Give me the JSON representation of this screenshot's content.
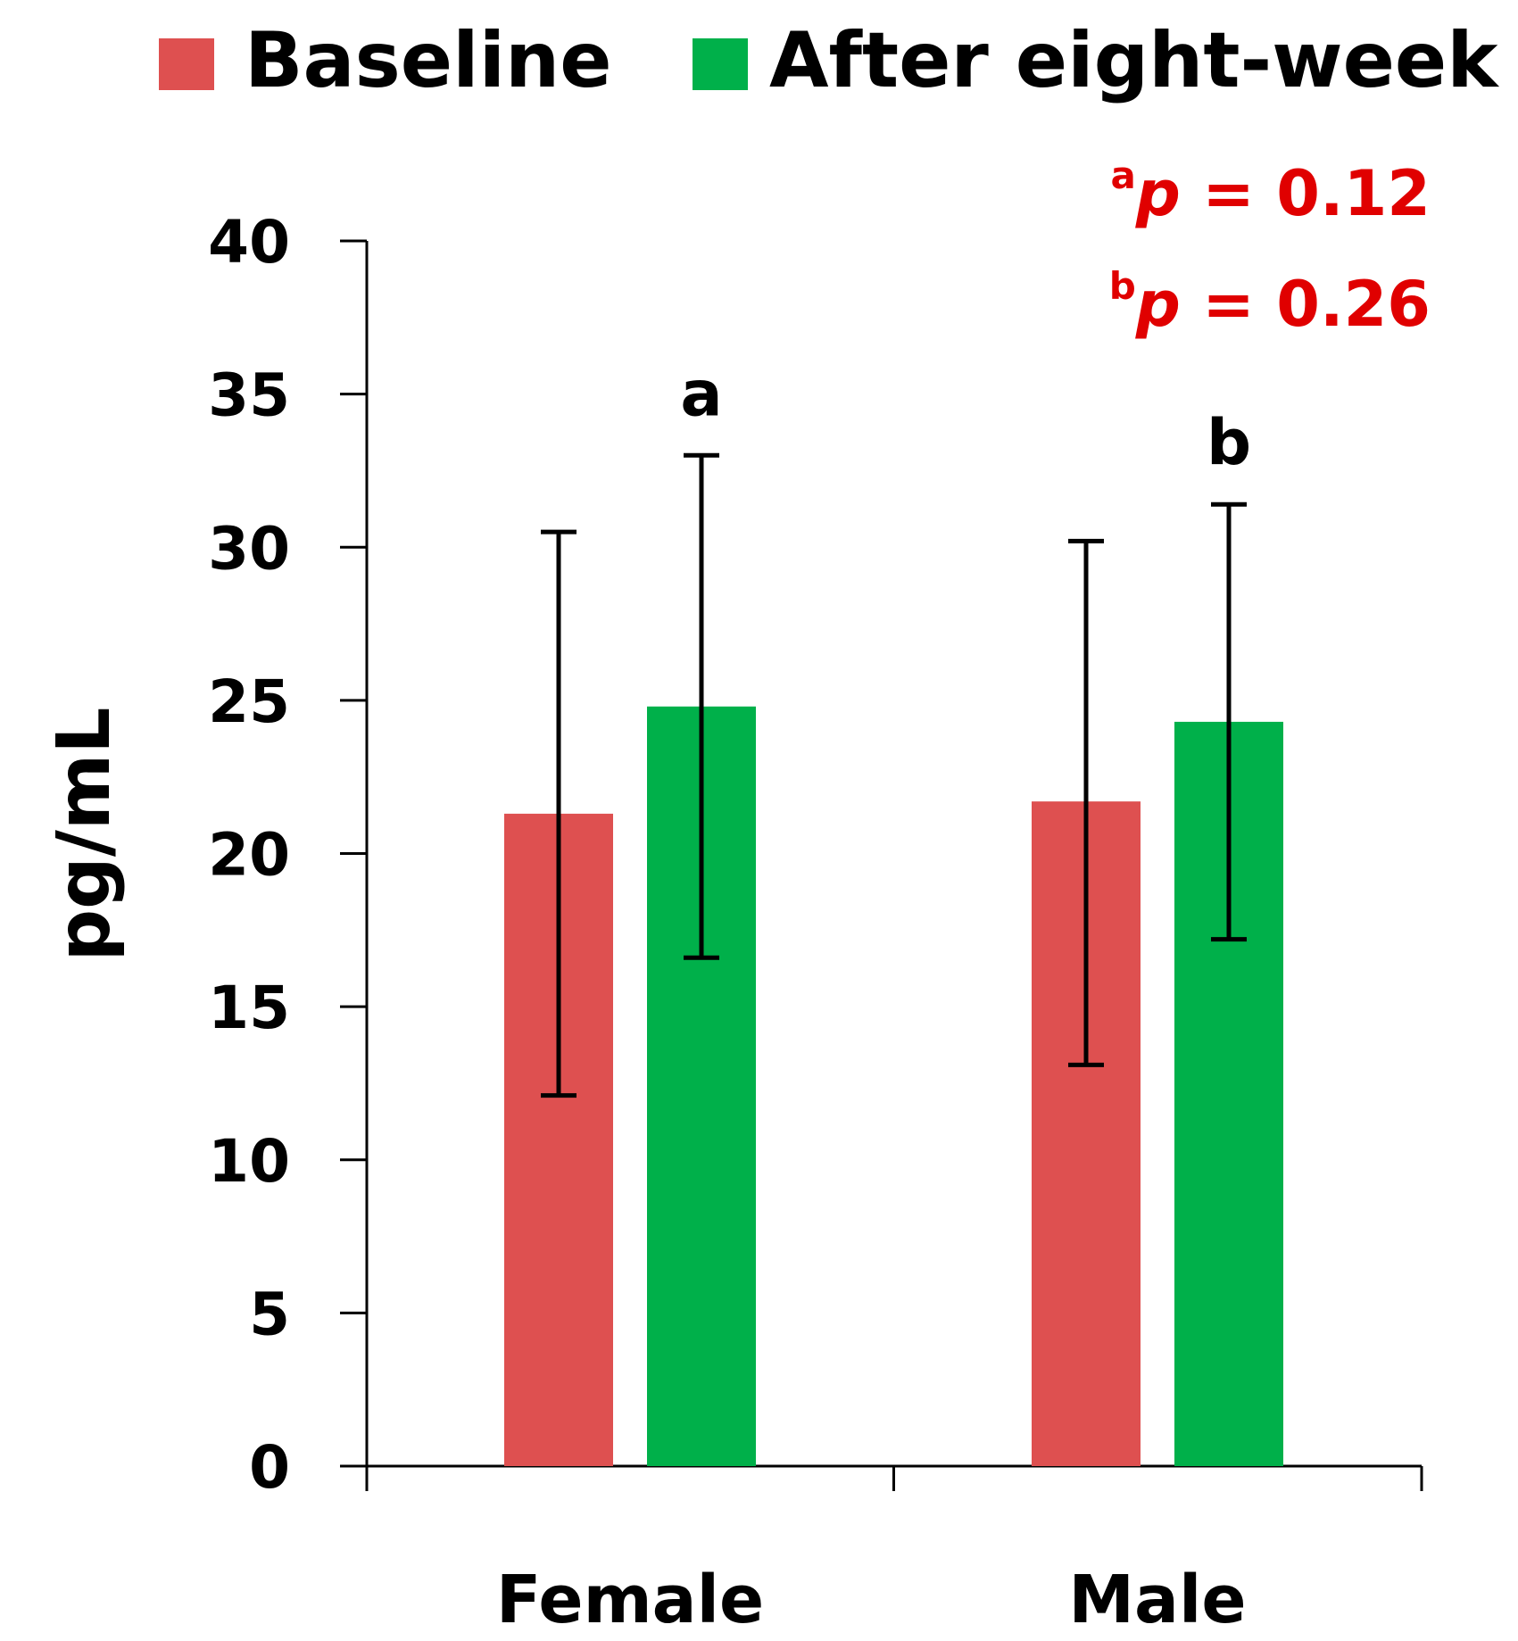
{
  "chart_data": {
    "type": "bar",
    "categories": [
      "Female",
      "Male"
    ],
    "series": [
      {
        "name": "Baseline",
        "color": "#DE5050",
        "values": [
          21.3,
          21.7
        ],
        "error_upper": [
          30.5,
          30.2
        ],
        "error_lower": [
          12.1,
          13.1
        ]
      },
      {
        "name": "After eight-week",
        "color": "#00B04A",
        "values": [
          24.8,
          24.3
        ],
        "error_upper": [
          33.0,
          31.4
        ],
        "error_lower": [
          16.6,
          17.2
        ]
      }
    ],
    "ylabel": "pg/mL",
    "ylim": [
      0,
      40
    ],
    "yticks": [
      "0",
      "5",
      "10",
      "15",
      "20",
      "25",
      "30",
      "35",
      "40"
    ],
    "sig_letters": [
      {
        "category": "Female",
        "series": "After eight-week",
        "letter": "a"
      },
      {
        "category": "Male",
        "series": "After eight-week",
        "letter": "b"
      }
    ],
    "annotations": [
      {
        "sup": "a",
        "italic": "p",
        "text": " = 0.12",
        "color": "#E00000"
      },
      {
        "sup": "b",
        "italic": "p",
        "text": " = 0.26",
        "color": "#E00000"
      }
    ],
    "legend_position": "top",
    "grid": false
  }
}
